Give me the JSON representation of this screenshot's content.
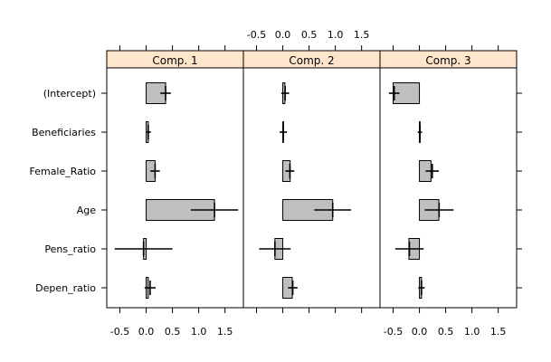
{
  "chart_data": {
    "type": "bar",
    "layout": "three side-by-side panels with shared category axis",
    "categories": [
      "(Intercept)",
      "Beneficiaries",
      "Female_Ratio",
      "Age",
      "Pens_ratio",
      "Depen_ratio"
    ],
    "xlim": [
      -0.75,
      1.85
    ],
    "xticks": [
      -0.5,
      0.0,
      0.5,
      1.0,
      1.5
    ],
    "xtick_labels": [
      "-0.5",
      "0.0",
      "0.5",
      "1.0",
      "1.5"
    ],
    "bottom_axis_panels": [
      "Comp. 1",
      "Comp. 3"
    ],
    "top_axis_panels": [
      "Comp. 2"
    ],
    "strip_color": "#ffe5cc",
    "bar_color": "#bfbfbf",
    "panels": [
      {
        "name": "Comp. 1",
        "values": [
          0.37,
          0.04,
          0.17,
          1.3,
          -0.05,
          0.04
        ],
        "intervals": [
          [
            0.27,
            0.47
          ],
          [
            -0.01,
            0.09
          ],
          [
            0.08,
            0.26
          ],
          [
            0.85,
            1.75
          ],
          [
            -0.6,
            0.5
          ],
          [
            -0.03,
            0.18
          ]
        ]
      },
      {
        "name": "Comp. 2",
        "values": [
          0.04,
          0.01,
          0.14,
          0.95,
          -0.15,
          0.18
        ],
        "intervals": [
          [
            -0.03,
            0.12
          ],
          [
            -0.06,
            0.08
          ],
          [
            0.05,
            0.22
          ],
          [
            0.6,
            1.3
          ],
          [
            -0.45,
            0.15
          ],
          [
            0.1,
            0.28
          ]
        ]
      },
      {
        "name": "Comp. 3",
        "values": [
          -0.5,
          0.01,
          0.22,
          0.37,
          -0.2,
          0.04
        ],
        "intervals": [
          [
            -0.58,
            -0.38
          ],
          [
            -0.03,
            0.05
          ],
          [
            0.12,
            0.37
          ],
          [
            0.1,
            0.65
          ],
          [
            -0.46,
            0.08
          ],
          [
            -0.02,
            0.1
          ]
        ]
      }
    ]
  }
}
